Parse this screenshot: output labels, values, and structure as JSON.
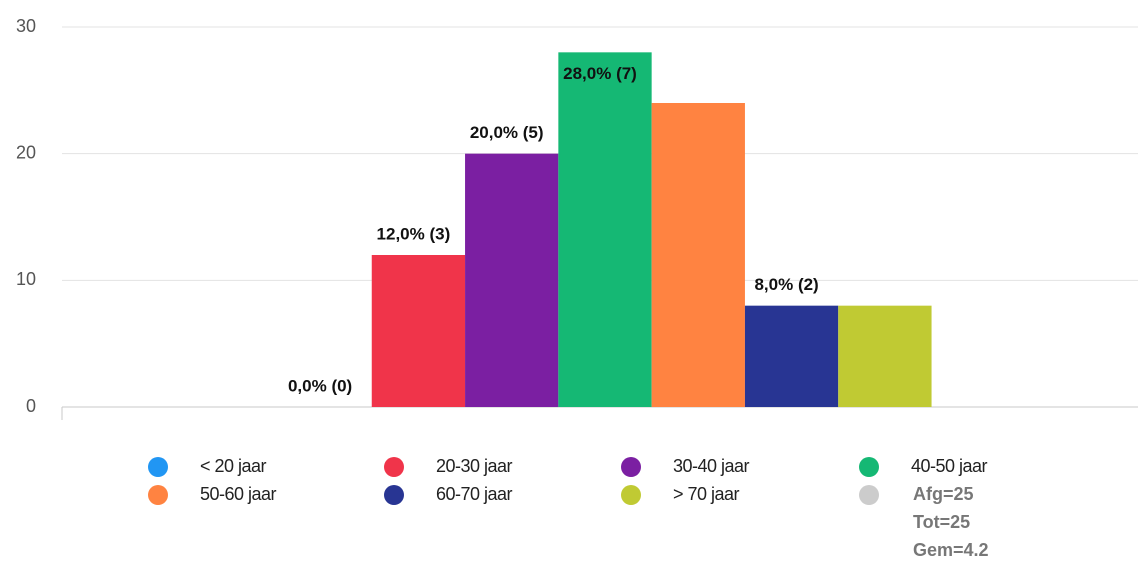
{
  "chart_data": {
    "type": "bar",
    "categories": [
      "< 20 jaar",
      "20-30 jaar",
      "30-40 jaar",
      "40-50 jaar",
      "50-60 jaar",
      "60-70 jaar",
      "> 70 jaar"
    ],
    "values": [
      0,
      12,
      20,
      28,
      24,
      8,
      8
    ],
    "value_labels": [
      "0,0% (0)",
      "12,0% (3)",
      "20,0% (5)",
      "28,0% (7)",
      null,
      "8,0% (2)",
      null
    ],
    "colors": [
      "#2196f3",
      "#f0344a",
      "#7b1fa2",
      "#15b874",
      "#ff8341",
      "#283593",
      "#c0ca33"
    ],
    "legend_note": {
      "color": "#cccccc",
      "lines": [
        "Afg=25",
        "Tot=25",
        "Gem=4.2"
      ]
    },
    "ylim": [
      0,
      30
    ],
    "yticks": [
      0,
      10,
      20,
      30
    ],
    "grid": true
  }
}
